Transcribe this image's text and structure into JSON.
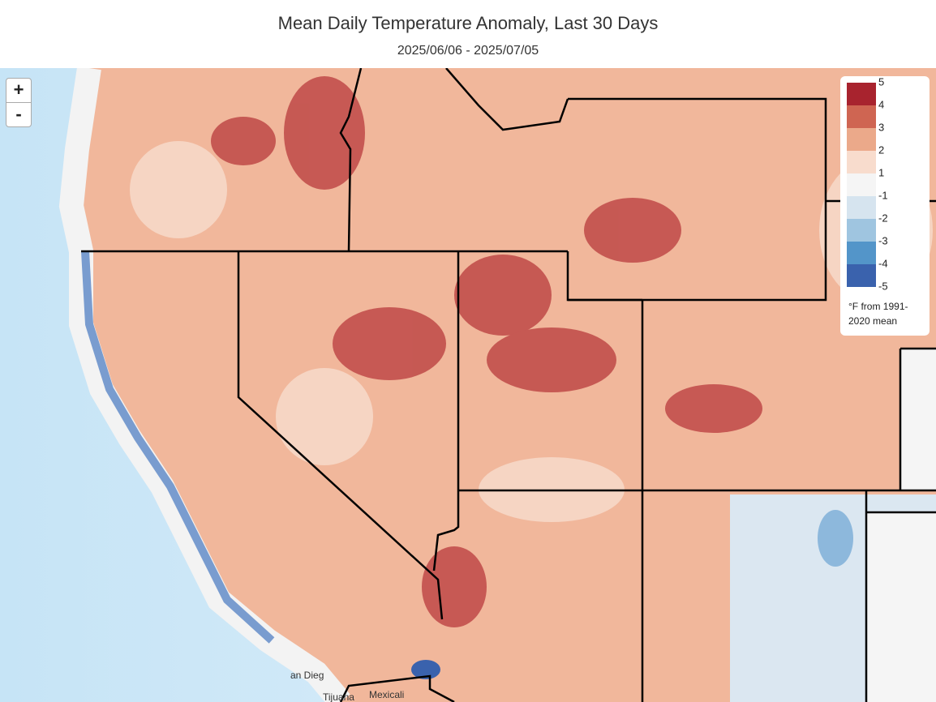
{
  "header": {
    "title": "Mean Daily Temperature Anomaly, Last 30 Days",
    "subtitle": "2025/06/06 - 2025/07/05"
  },
  "zoom": {
    "in": "+",
    "out": "-"
  },
  "legend": {
    "labels": [
      "5",
      "4",
      "3",
      "2",
      "1",
      "-1",
      "-2",
      "-3",
      "-4",
      "-5"
    ],
    "colors": [
      "#a8232e",
      "#cf6552",
      "#eba98a",
      "#f8dccd",
      "#f5f5f5",
      "#d6e4ef",
      "#9fc5e0",
      "#5395c9",
      "#3a62ad"
    ],
    "note": [
      "°F from 1991-",
      "2020 mean"
    ]
  },
  "places": [
    "an Dieg",
    "Tijuana",
    "Mexicali"
  ]
}
